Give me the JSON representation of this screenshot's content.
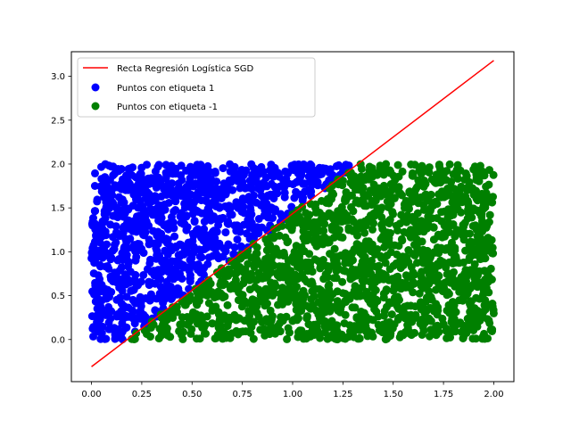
{
  "chart_data": {
    "type": "scatter",
    "title": "",
    "xlabel": "",
    "ylabel": "",
    "xlim": [
      -0.1,
      2.1
    ],
    "ylim": [
      -0.48,
      3.28
    ],
    "xticks": [
      "0.00",
      "0.25",
      "0.50",
      "0.75",
      "1.00",
      "1.25",
      "1.50",
      "1.75",
      "2.00"
    ],
    "yticks": [
      "0.0",
      "0.5",
      "1.0",
      "1.5",
      "2.0",
      "2.5",
      "3.0"
    ],
    "grid": false,
    "legend_position": "top-left",
    "regression_line": {
      "name": "Recta Regresión Logística SGD",
      "color": "#ff0000",
      "x": [
        0.0,
        2.0
      ],
      "y": [
        -0.31,
        3.18
      ]
    },
    "series": [
      {
        "name": "Puntos con etiqueta 1",
        "color": "#0000ff",
        "region": {
          "x": [
            0.0,
            2.0
          ],
          "y": [
            0.0,
            2.0
          ]
        },
        "boundary_line": {
          "slope": 1.745,
          "intercept": -0.31
        },
        "count": 1350
      },
      {
        "name": "Puntos con etiqueta -1",
        "color": "#008000",
        "region": {
          "x": [
            0.0,
            2.0
          ],
          "y": [
            0.0,
            2.0
          ]
        },
        "boundary_line": {
          "slope": 1.745,
          "intercept": -0.31
        },
        "count": 1350
      }
    ]
  }
}
